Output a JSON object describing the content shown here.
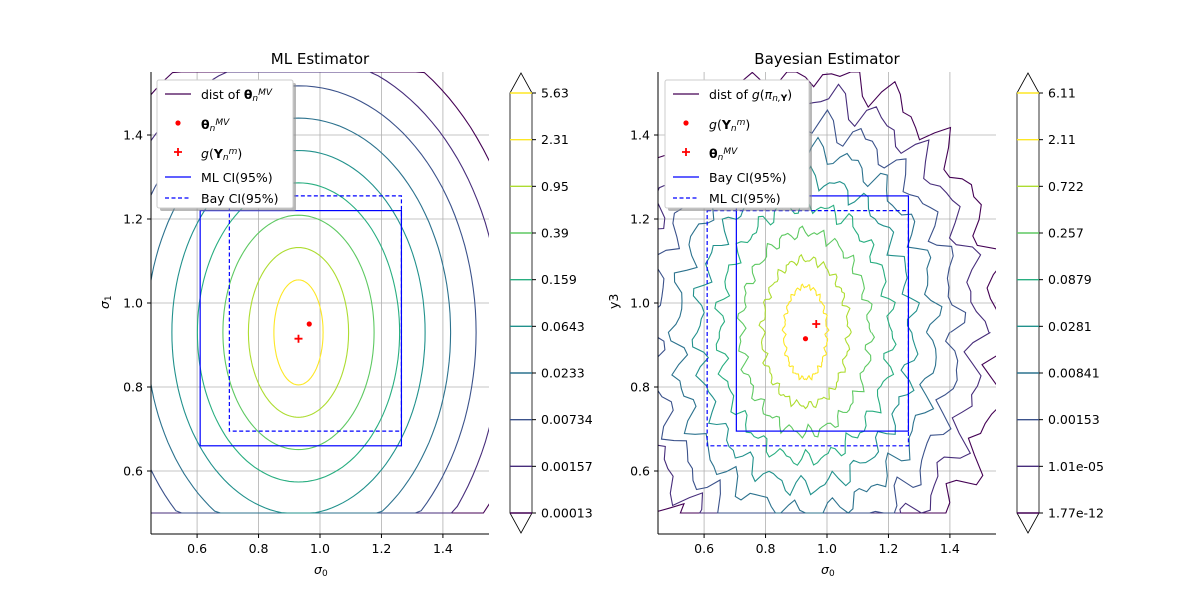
{
  "colors": {
    "viridis": [
      "#440154",
      "#472d7b",
      "#3b528b",
      "#2c728e",
      "#21918c",
      "#28ae80",
      "#5ec962",
      "#addc30",
      "#fde725"
    ],
    "scatter": "#ff0000",
    "ci": "#0000ff",
    "grid": "#b0b0b0"
  },
  "chart_data": [
    {
      "type": "contour",
      "title": "ML Estimator",
      "xlabel": "σ0",
      "ylabel": "σ1",
      "xlim": [
        0.45,
        1.55
      ],
      "ylim": [
        0.45,
        1.55
      ],
      "xticks": [
        "0.6",
        "0.8",
        "1.0",
        "1.2",
        "1.4"
      ],
      "yticks": [
        "0.6",
        "0.8",
        "1.0",
        "1.2",
        "1.4"
      ],
      "grid": true,
      "legend_position": "top-left",
      "legend": [
        {
          "label": "dist of θnMV",
          "style": "line-purple"
        },
        {
          "label": "θnMV",
          "style": "dot"
        },
        {
          "label": "g(Ynm)",
          "style": "plus"
        },
        {
          "label": "ML CI(95%)",
          "style": "solid-blue"
        },
        {
          "label": "Bay CI(95%)",
          "style": "dashed-blue"
        }
      ],
      "points": {
        "dot": [
          0.965,
          0.95
        ],
        "plus": [
          0.93,
          0.915
        ]
      },
      "ci_solid": {
        "x": [
          0.61,
          1.265
        ],
        "y": [
          0.66,
          1.22
        ]
      },
      "ci_dashed": {
        "x": [
          0.705,
          1.265
        ],
        "y": [
          0.695,
          1.255
        ]
      },
      "contour_center": [
        0.93,
        0.93
      ],
      "contour_levels": [
        "0.00013",
        "0.00157",
        "0.00734",
        "0.0233",
        "0.0643",
        "0.159",
        "0.39",
        "0.95",
        "2.31",
        "5.63"
      ],
      "colorbar_ticks": [
        "5.63",
        "2.31",
        "0.95",
        "0.39",
        "0.159",
        "0.0643",
        "0.0233",
        "0.00734",
        "0.00157",
        "0.00013"
      ]
    },
    {
      "type": "contour",
      "title": "Bayesian Estimator",
      "xlabel": "σ0",
      "ylabel": "γ3",
      "xlim": [
        0.45,
        1.55
      ],
      "ylim": [
        0.45,
        1.55
      ],
      "xticks": [
        "0.6",
        "0.8",
        "1.0",
        "1.2",
        "1.4"
      ],
      "yticks": [
        "0.6",
        "0.8",
        "1.0",
        "1.2",
        "1.4"
      ],
      "grid": true,
      "legend_position": "top-left",
      "legend": [
        {
          "label": "dist of g(πn,Y)",
          "style": "line-purple"
        },
        {
          "label": "g(Ynm)",
          "style": "dot"
        },
        {
          "label": "θnMV",
          "style": "plus"
        },
        {
          "label": "Bay CI(95%)",
          "style": "solid-blue"
        },
        {
          "label": "ML CI(95%)",
          "style": "dashed-blue"
        }
      ],
      "points": {
        "dot": [
          0.93,
          0.915
        ],
        "plus": [
          0.965,
          0.95
        ]
      },
      "ci_solid": {
        "x": [
          0.705,
          1.265
        ],
        "y": [
          0.695,
          1.255
        ]
      },
      "ci_dashed": {
        "x": [
          0.61,
          1.265
        ],
        "y": [
          0.66,
          1.22
        ]
      },
      "contour_center": [
        0.93,
        0.93
      ],
      "contour_levels": [
        "1.77e-12",
        "1.01e-05",
        "0.00153",
        "0.00841",
        "0.0281",
        "0.0879",
        "0.257",
        "0.722",
        "2.11",
        "6.11"
      ],
      "colorbar_ticks": [
        "6.11",
        "2.11",
        "0.722",
        "0.257",
        "0.0879",
        "0.0281",
        "0.00841",
        "0.00153",
        "1.01e-05",
        "1.77e-12"
      ]
    }
  ]
}
